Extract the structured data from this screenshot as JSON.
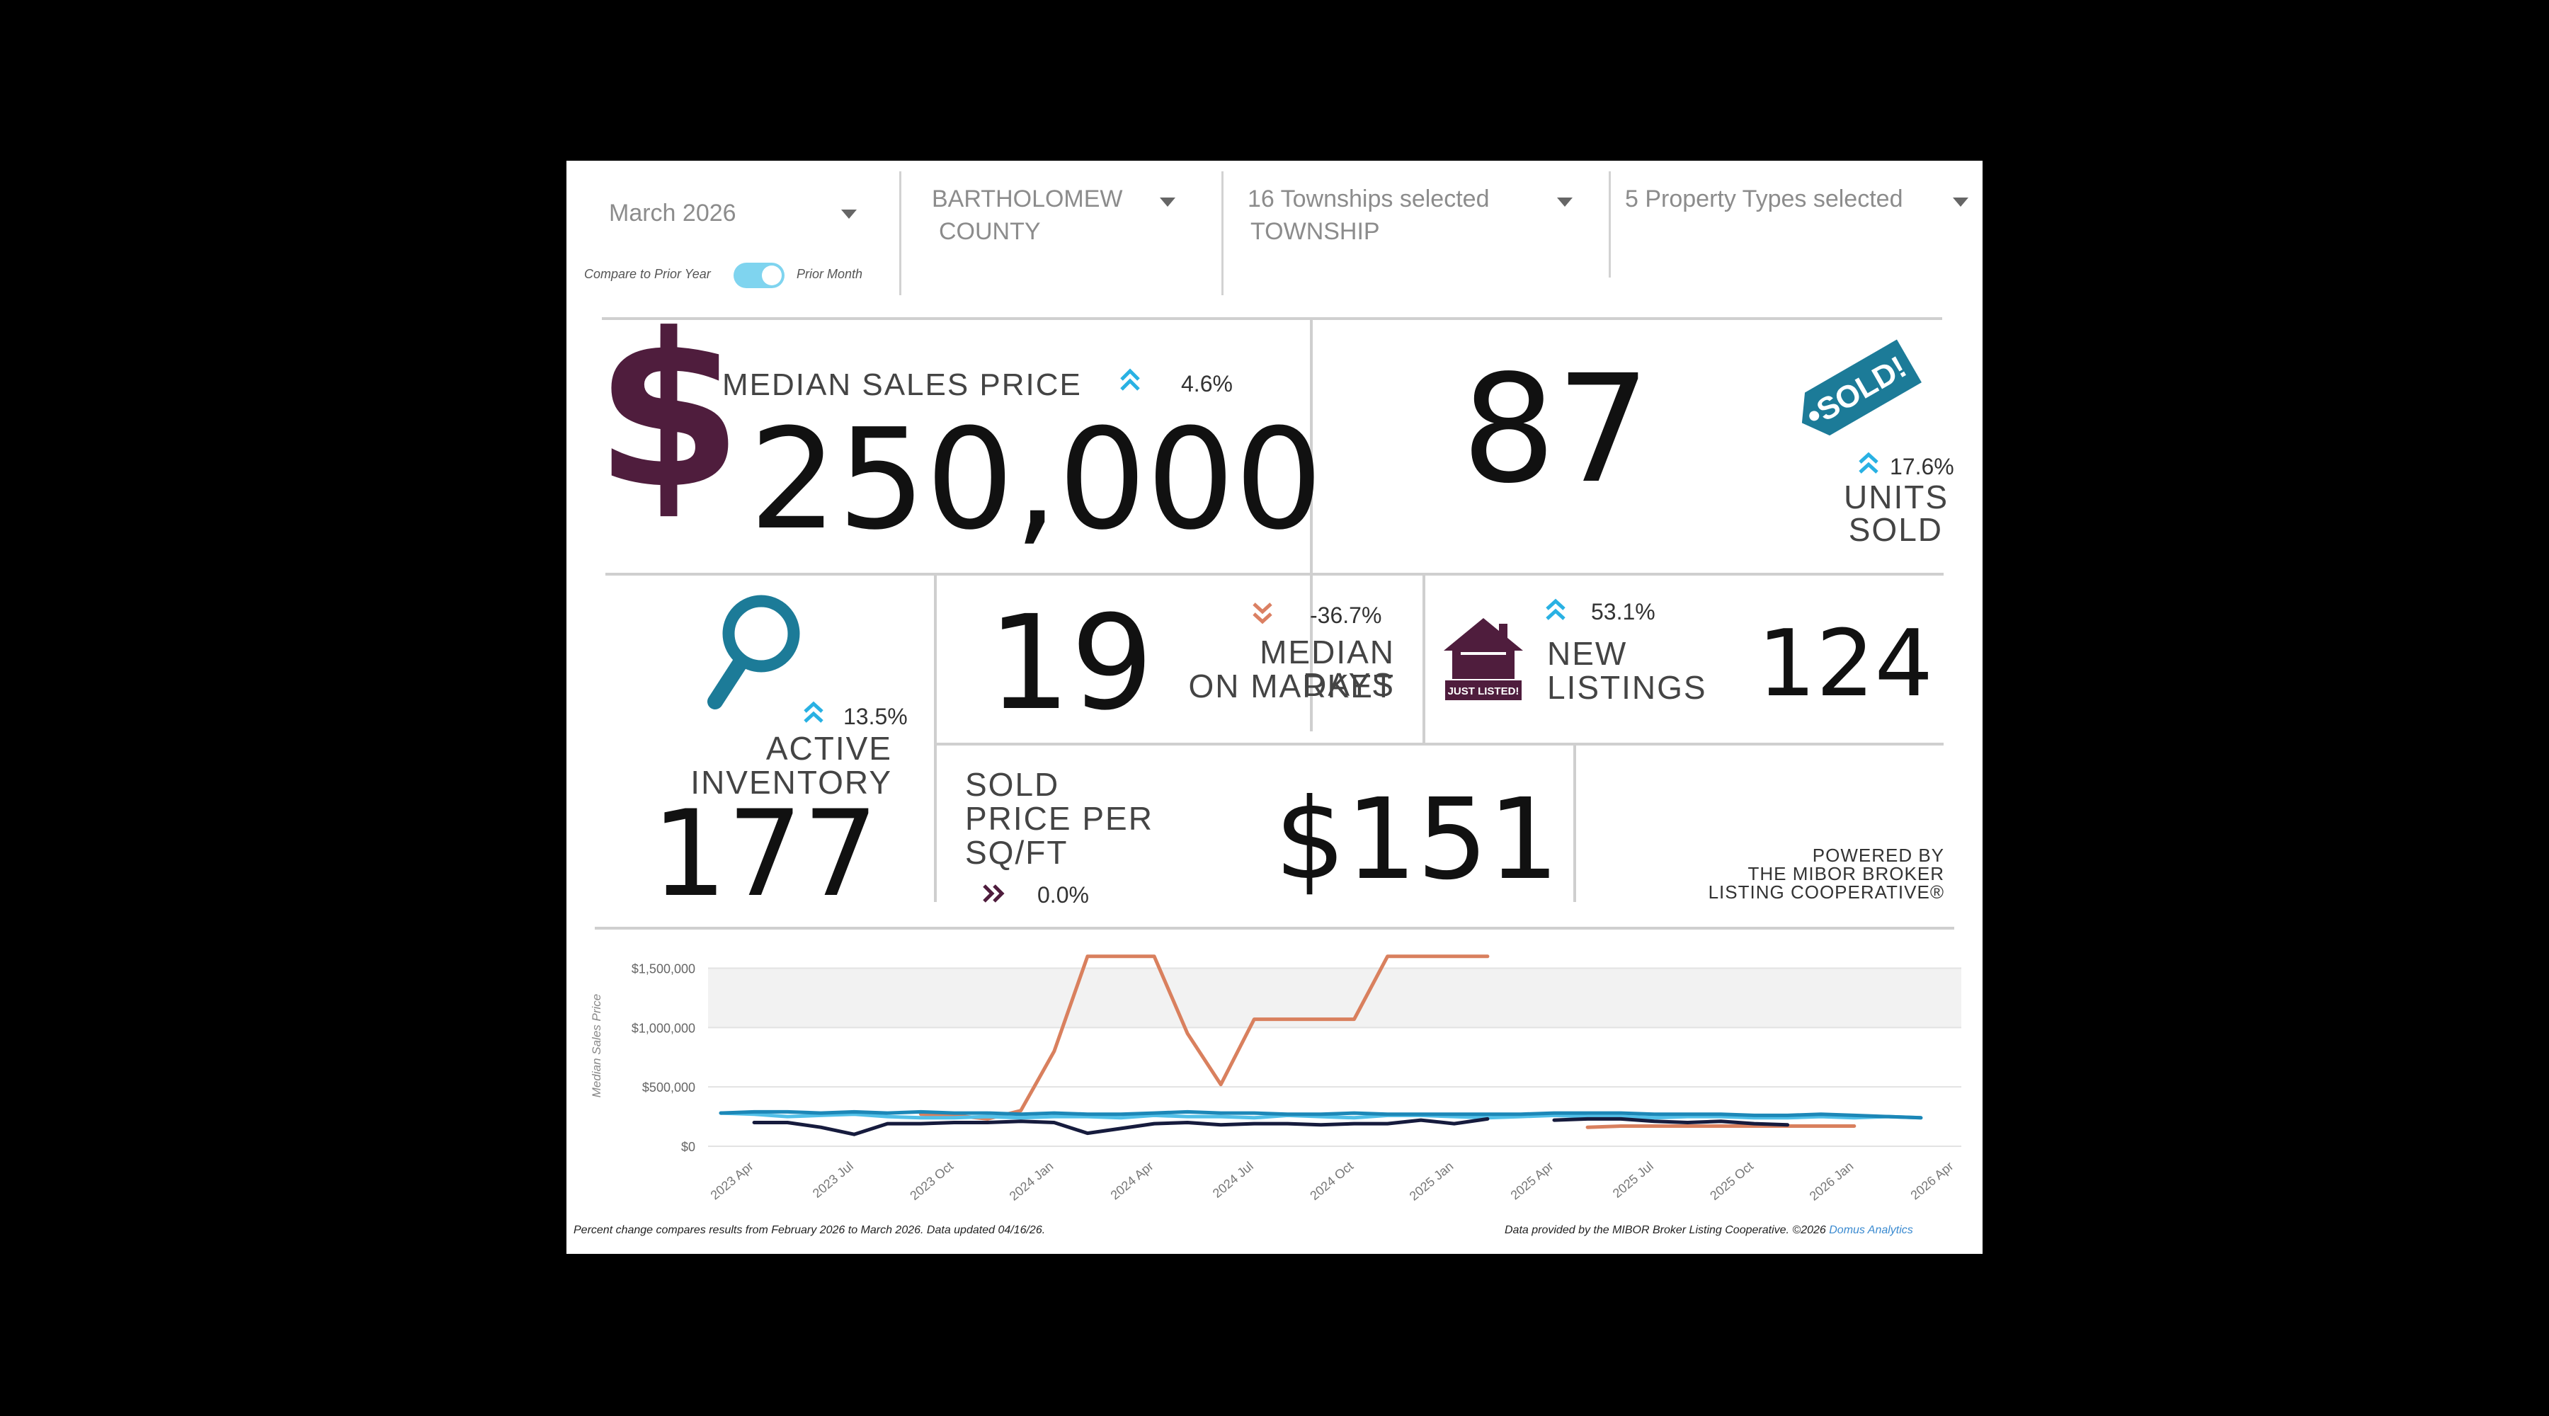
{
  "filters": {
    "period": "March 2026",
    "county_line1": "BARTHOLOMEW",
    "county_line2": "COUNTY",
    "townships_line1": "16 Townships selected",
    "townships_line2": "TOWNSHIP",
    "property_types": "5 Property Types selected"
  },
  "toggle": {
    "left_label": "Compare to Prior Year",
    "right_label": "Prior Month",
    "state": "prior-month"
  },
  "kpis": {
    "median_sales_price": {
      "label": "MEDIAN SALES PRICE",
      "currency": "$",
      "value": "250,000",
      "change": "4.6%",
      "direction": "up"
    },
    "units_sold": {
      "value": "87",
      "label_line1": "UNITS",
      "label_line2": "SOLD",
      "change": "17.6%",
      "direction": "up",
      "tag": "SOLD!"
    },
    "active_inventory": {
      "label_line1": "ACTIVE",
      "label_line2": "INVENTORY",
      "value": "177",
      "change": "13.5%",
      "direction": "up"
    },
    "median_days_on_market": {
      "value": "19",
      "label_line1": "MEDIAN DAYS",
      "label_line2": "ON MARKET",
      "change": "-36.7%",
      "direction": "down"
    },
    "new_listings": {
      "label_line1": "NEW",
      "label_line2": "LISTINGS",
      "value": "124",
      "change": "53.1%",
      "direction": "up",
      "badge": "JUST LISTED!"
    },
    "sold_price_per_sqft": {
      "label_line1": "SOLD",
      "label_line2": "PRICE PER",
      "label_line3": "SQ/FT",
      "value": "$151",
      "change": "0.0%",
      "direction": "flat"
    }
  },
  "powered_by": {
    "line1": "POWERED BY",
    "line2": "THE MIBOR BROKER",
    "line3": "LISTING COOPERATIVE®"
  },
  "colors": {
    "accent_maroon": "#4f1d3d",
    "accent_cyan": "#29b1e3",
    "accent_teal": "#1c7b98",
    "down_orange": "#db8063",
    "line_orange": "#d9805e",
    "line_blue": "#1c87b7",
    "line_navy": "#161b3d",
    "line_light_blue": "#52c0e8"
  },
  "chart_data": {
    "type": "line",
    "ylabel": "Median Sales Price",
    "ylim": [
      0,
      1700000
    ],
    "y_ticks": [
      {
        "value": 0,
        "label": "$0"
      },
      {
        "value": 500000,
        "label": "$500,000"
      },
      {
        "value": 1000000,
        "label": "$1,000,000"
      },
      {
        "value": 1500000,
        "label": "$1,500,000"
      }
    ],
    "x_tick_labels": [
      "2023 Apr",
      "2023 Jul",
      "2023 Oct",
      "2024 Jan",
      "2024 Apr",
      "2024 Jul",
      "2024 Oct",
      "2025 Jan",
      "2025 Apr",
      "2025 Jul",
      "2025 Oct",
      "2026 Jan",
      "2026 Apr"
    ],
    "x_months": [
      "2023-03",
      "2023-04",
      "2023-05",
      "2023-06",
      "2023-07",
      "2023-08",
      "2023-09",
      "2023-10",
      "2023-11",
      "2023-12",
      "2024-01",
      "2024-02",
      "2024-03",
      "2024-04",
      "2024-05",
      "2024-06",
      "2024-07",
      "2024-08",
      "2024-09",
      "2024-10",
      "2024-11",
      "2024-12",
      "2025-01",
      "2025-02",
      "2025-03",
      "2025-04",
      "2025-05",
      "2025-06",
      "2025-07",
      "2025-08",
      "2025-09",
      "2025-10",
      "2025-11",
      "2025-12",
      "2026-01",
      "2026-02",
      "2026-03"
    ],
    "series": [
      {
        "color": "#d9805e",
        "values": [
          null,
          null,
          null,
          null,
          null,
          null,
          270000,
          260000,
          230000,
          300000,
          800000,
          1600000,
          1600000,
          1600000,
          950000,
          520000,
          1070000,
          1070000,
          1070000,
          1070000,
          1600000,
          1600000,
          1600000,
          1600000,
          null,
          null,
          160000,
          170000,
          170000,
          170000,
          170000,
          170000,
          170000,
          170000,
          170000,
          null,
          null
        ]
      },
      {
        "color": "#52c0e8",
        "values": [
          280000,
          270000,
          250000,
          260000,
          270000,
          250000,
          240000,
          240000,
          250000,
          240000,
          250000,
          250000,
          240000,
          260000,
          250000,
          250000,
          240000,
          260000,
          250000,
          240000,
          260000,
          260000,
          250000,
          240000,
          250000,
          260000,
          250000,
          250000,
          240000,
          250000,
          250000,
          240000,
          240000,
          250000,
          240000,
          250000,
          240000
        ]
      },
      {
        "color": "#1c87b7",
        "values": [
          280000,
          290000,
          290000,
          280000,
          290000,
          280000,
          290000,
          280000,
          280000,
          270000,
          280000,
          270000,
          270000,
          280000,
          290000,
          280000,
          280000,
          270000,
          270000,
          280000,
          270000,
          270000,
          270000,
          270000,
          270000,
          280000,
          280000,
          280000,
          270000,
          270000,
          270000,
          260000,
          260000,
          270000,
          260000,
          250000,
          240000
        ]
      },
      {
        "color": "#161b3d",
        "values": [
          null,
          200000,
          200000,
          160000,
          100000,
          190000,
          190000,
          200000,
          200000,
          210000,
          200000,
          110000,
          150000,
          190000,
          200000,
          180000,
          190000,
          190000,
          180000,
          190000,
          190000,
          220000,
          190000,
          230000,
          null,
          220000,
          230000,
          230000,
          210000,
          200000,
          210000,
          190000,
          180000,
          null,
          null,
          null,
          null
        ]
      }
    ]
  },
  "footer": {
    "left": "Percent change compares results from February 2026 to March 2026.  Data updated 04/16/26.",
    "right_prefix": "Data provided by the MIBOR Broker Listing Cooperative. ©2026",
    "right_link": "Domus Analytics"
  }
}
